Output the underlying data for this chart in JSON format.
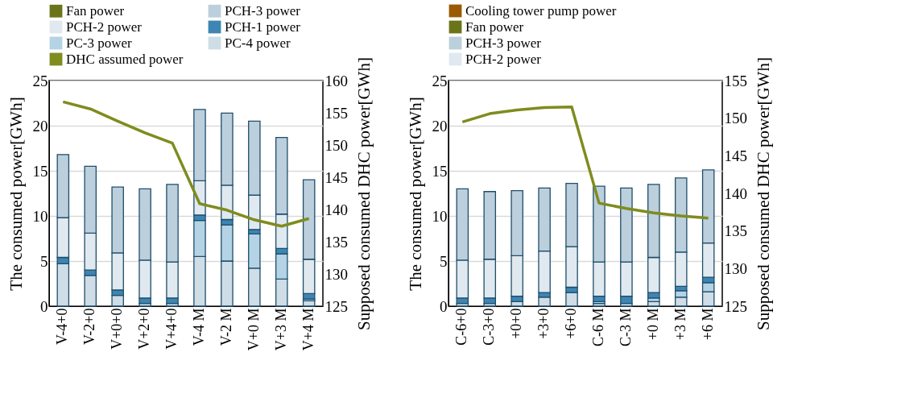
{
  "chart_data": [
    {
      "type": "bar",
      "stacked": true,
      "categories": [
        "V-4+0",
        "V-2+0",
        "V+0+0",
        "V+2+0",
        "V+4+0",
        "V-4 M",
        "V-2 M",
        "V+0 M",
        "V+3 M",
        "V+4 M"
      ],
      "ylabel": "The consumed power[GWh]",
      "y2label": "Supposed consumed DHC power[GWh]",
      "ylim": [
        0,
        25
      ],
      "yticks": [
        0,
        5,
        10,
        15,
        20,
        25
      ],
      "y2lim": [
        125,
        160
      ],
      "y2ticks": [
        125,
        130,
        135,
        140,
        145,
        150,
        155,
        160
      ],
      "grid": "y",
      "legend": "top",
      "series": [
        {
          "name": "PC-4 power",
          "color": "#cfdde7",
          "values": [
            4.7,
            3.4,
            1.2,
            0.3,
            0.3,
            5.5,
            5.0,
            4.2,
            3.0,
            0.6
          ]
        },
        {
          "name": "PC-3 power",
          "color": "#b4d3e4",
          "values": [
            null,
            null,
            null,
            null,
            null,
            4.0,
            4.0,
            3.8,
            2.8,
            0.2
          ]
        },
        {
          "name": "PCH-1 power",
          "color": "#3d85b3",
          "values": [
            0.7,
            0.6,
            0.6,
            0.6,
            0.6,
            0.6,
            0.6,
            0.5,
            0.6,
            0.6
          ]
        },
        {
          "name": "PCH-2 power",
          "color": "#e0e9ef",
          "values": [
            4.4,
            4.1,
            4.1,
            4.2,
            4.0,
            3.8,
            3.8,
            3.8,
            3.8,
            3.8
          ]
        },
        {
          "name": "PCH-3 power",
          "color": "#bccfdc",
          "values": [
            7.0,
            7.4,
            7.3,
            7.9,
            8.6,
            7.9,
            8.0,
            8.2,
            8.5,
            8.8
          ]
        },
        {
          "name": "Fan power",
          "color": "#6b7418",
          "values": [
            null,
            null,
            null,
            null,
            null,
            null,
            null,
            null,
            null,
            null
          ]
        },
        {
          "name": "DHC assumed power",
          "type": "line",
          "axis": "y2",
          "color": "#7f8c1e",
          "values": [
            156.7,
            155.6,
            153.7,
            151.9,
            150.3,
            140.9,
            139.9,
            138.4,
            137.4,
            138.6
          ]
        }
      ]
    },
    {
      "type": "bar",
      "stacked": true,
      "categories": [
        "C-6+0",
        "C-3+0",
        "+0+0",
        "+3+0",
        "+6+0",
        "C-6 M",
        "C-3 M",
        "+0 M",
        "+3 M",
        "+6 M"
      ],
      "ylabel": "The consumed power[GWh]",
      "y2label": "Supposed consumed DHC power[GWh]",
      "ylim": [
        0,
        25
      ],
      "yticks": [
        0,
        5,
        10,
        15,
        20,
        25
      ],
      "y2lim": [
        125,
        155
      ],
      "y2ticks": [
        125,
        130,
        135,
        140,
        145,
        150,
        155
      ],
      "grid": "y",
      "legend": "top",
      "series": [
        {
          "color": "#cfdde7",
          "values": [
            0.3,
            0.3,
            0.5,
            1.0,
            1.5,
            0.3,
            0.3,
            0.5,
            1.0,
            1.6
          ]
        },
        {
          "color": "#b4d3e4",
          "values": [
            null,
            null,
            null,
            null,
            null,
            0.2,
            null,
            0.4,
            0.7,
            1.0
          ]
        },
        {
          "color": "#3d85b3",
          "values": [
            0.6,
            0.6,
            0.6,
            0.5,
            0.6,
            0.6,
            0.8,
            0.6,
            0.5,
            0.6
          ]
        },
        {
          "name": "PCH-2 power",
          "color": "#e0e9ef",
          "values": [
            4.2,
            4.3,
            4.5,
            4.6,
            4.5,
            3.8,
            3.8,
            3.9,
            3.8,
            3.8
          ]
        },
        {
          "name": "PCH-3 power",
          "color": "#bccfdc",
          "values": [
            7.9,
            7.5,
            7.2,
            7.0,
            7.0,
            8.4,
            8.2,
            8.1,
            8.2,
            8.1
          ]
        },
        {
          "name": "Fan power",
          "color": "#6b7418",
          "values": [
            null,
            null,
            null,
            null,
            null,
            null,
            null,
            null,
            null,
            null
          ]
        },
        {
          "name": "Cooling tower pump power",
          "color": "#9a5b00",
          "values": [
            null,
            null,
            null,
            null,
            null,
            null,
            null,
            null,
            null,
            null
          ]
        },
        {
          "type": "line",
          "axis": "y2",
          "color": "#7f8c1e",
          "values": [
            149.5,
            150.6,
            151.1,
            151.4,
            151.5,
            138.7,
            138.0,
            137.4,
            137.0,
            136.7
          ]
        }
      ]
    }
  ]
}
